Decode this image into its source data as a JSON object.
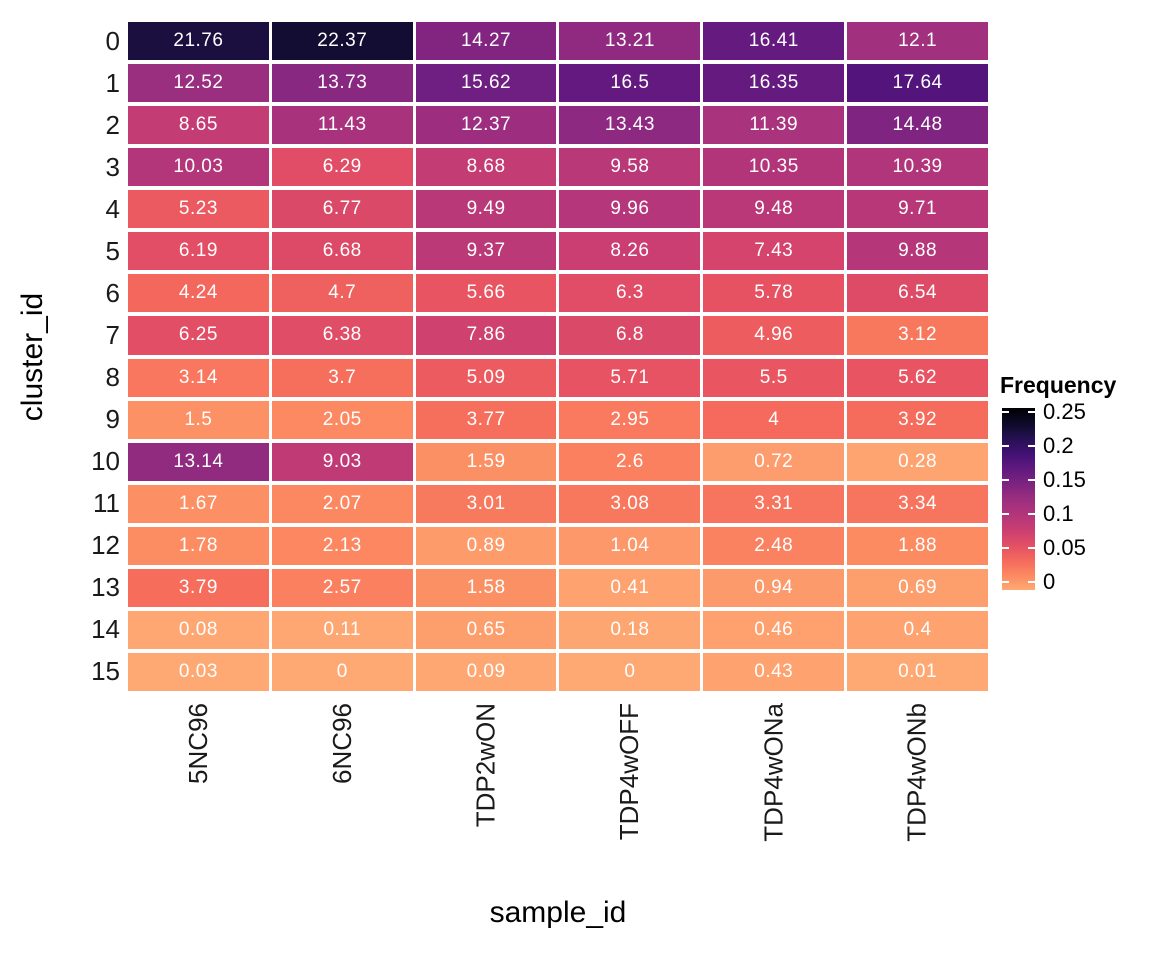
{
  "figure": {
    "background": "#ffffff",
    "cell_text_color": "#ffffff",
    "axis_text_color": "#1a1a1a"
  },
  "chart_data": {
    "type": "heatmap",
    "title": "",
    "xlabel": "sample_id",
    "ylabel": "cluster_id",
    "x_categories": [
      "5NC96",
      "6NC96",
      "TDP2wON",
      "TDP4wOFF",
      "TDP4wONa",
      "TDP4wONb"
    ],
    "y_categories": [
      "0",
      "1",
      "2",
      "3",
      "4",
      "5",
      "6",
      "7",
      "8",
      "9",
      "10",
      "11",
      "12",
      "13",
      "14",
      "15"
    ],
    "values_unit": "percent_frequency",
    "values": [
      [
        21.76,
        22.37,
        14.27,
        13.21,
        16.41,
        12.1
      ],
      [
        12.52,
        13.73,
        15.62,
        16.5,
        16.35,
        17.64
      ],
      [
        8.65,
        11.43,
        12.37,
        13.43,
        11.39,
        14.48
      ],
      [
        10.03,
        6.29,
        8.68,
        9.58,
        10.35,
        10.39
      ],
      [
        5.23,
        6.77,
        9.49,
        9.96,
        9.48,
        9.71
      ],
      [
        6.19,
        6.68,
        9.37,
        8.26,
        7.43,
        9.88
      ],
      [
        4.24,
        4.7,
        5.66,
        6.3,
        5.78,
        6.54
      ],
      [
        6.25,
        6.38,
        7.86,
        6.8,
        4.96,
        3.12
      ],
      [
        3.14,
        3.7,
        5.09,
        5.71,
        5.5,
        5.62
      ],
      [
        1.5,
        2.05,
        3.77,
        2.95,
        4,
        3.92
      ],
      [
        13.14,
        9.03,
        1.59,
        2.6,
        0.72,
        0.28
      ],
      [
        1.67,
        2.07,
        3.01,
        3.08,
        3.31,
        3.34
      ],
      [
        1.78,
        2.13,
        0.89,
        1.04,
        2.48,
        1.88
      ],
      [
        3.79,
        2.57,
        1.58,
        0.41,
        0.94,
        0.69
      ],
      [
        0.08,
        0.11,
        0.65,
        0.18,
        0.46,
        0.4
      ],
      [
        0.03,
        0,
        0.09,
        0,
        0.43,
        0.01
      ]
    ],
    "legend": {
      "title": "Frequency",
      "tick_labels": [
        "0.25",
        "0.2",
        "0.15",
        "0.1",
        "0.05",
        "0"
      ],
      "min": 0,
      "max": 0.25,
      "position": "right"
    },
    "color_scale": {
      "palette": "magma-reversed",
      "value_at_black": 25,
      "value_at_light_orange": 0,
      "t_max": 0.816
    },
    "grid": "white-gaps-between-tiles"
  }
}
